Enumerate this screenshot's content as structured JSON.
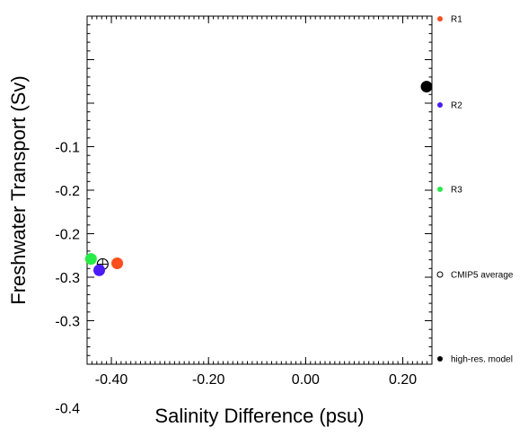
{
  "chart_data": {
    "type": "scatter",
    "xlabel": "Salinity Difference (psu)",
    "ylabel": "Freshwater Transport (Sv)",
    "xlim": [
      -0.45,
      0.26
    ],
    "ylim": [
      -0.4,
      0.0
    ],
    "x_ticks": [
      {
        "value": -0.4,
        "label": "-0.40"
      },
      {
        "value": -0.2,
        "label": "-0.20"
      },
      {
        "value": 0.0,
        "label": "0.00"
      },
      {
        "value": 0.2,
        "label": "0.20"
      }
    ],
    "y_ticks": [
      {
        "value": -0.1,
        "label": "-0.1"
      },
      {
        "value": -0.2,
        "label": "-0.2"
      },
      {
        "value": -0.3,
        "label": "-0.3"
      },
      {
        "value": -0.4,
        "label": "-0.4"
      }
    ],
    "y_ticks_mirrored": [
      {
        "value": -0.2,
        "label": "-0.2"
      },
      {
        "value": -0.3,
        "label": "-0.3"
      }
    ],
    "y_tick_label_offset_sv": -0.05,
    "grid": false,
    "legend_placement": "right",
    "series": [
      {
        "name": "R1",
        "color": "#ff4c1a",
        "marker": "filled-circle",
        "points": [
          {
            "x": -0.388,
            "y": -0.284
          }
        ]
      },
      {
        "name": "R2",
        "color": "#4b1aff",
        "marker": "filled-circle",
        "points": [
          {
            "x": -0.425,
            "y": -0.292
          }
        ]
      },
      {
        "name": "R3",
        "color": "#22ee44",
        "marker": "filled-circle",
        "points": [
          {
            "x": -0.442,
            "y": -0.279
          }
        ]
      },
      {
        "name": "CMIP5 average",
        "color": "#000000",
        "marker": "open-circle",
        "points": [
          {
            "x": -0.418,
            "y": -0.285
          }
        ],
        "error_x": 0.01,
        "error_y": 0.006
      },
      {
        "name": "high-res. model",
        "color": "#000000",
        "marker": "filled-circle",
        "points": [
          {
            "x": 0.249,
            "y": -0.081
          }
        ]
      }
    ]
  }
}
